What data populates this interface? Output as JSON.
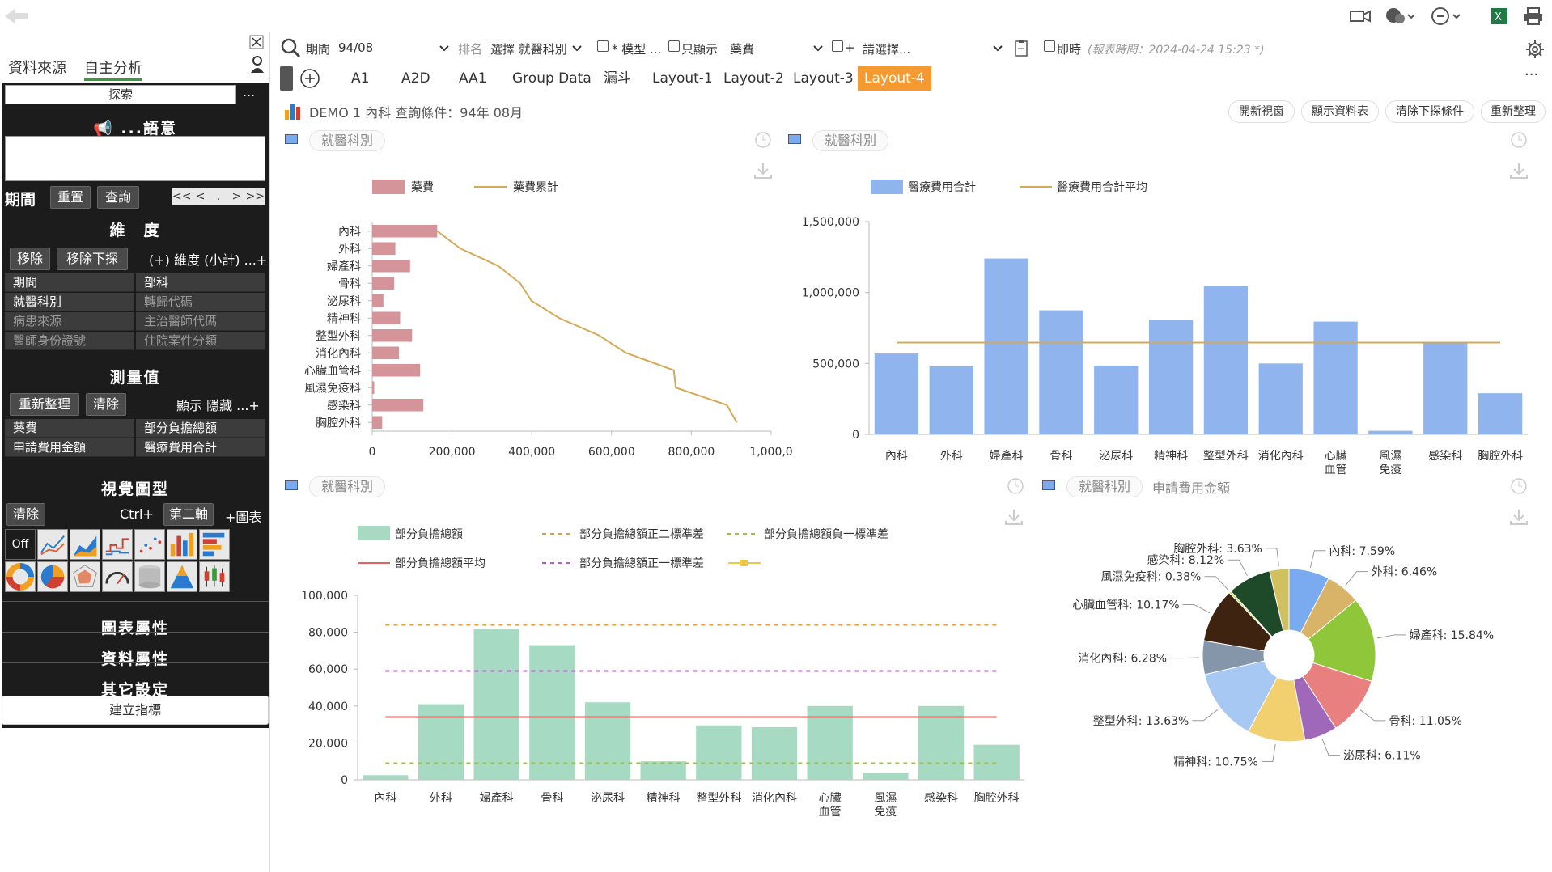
{
  "topbar": {
    "back_icon": "back-arrow-icon",
    "right_icons": [
      "video-icon",
      "chat-icon",
      "clock-icon",
      "excel-icon",
      "printer-icon"
    ]
  },
  "sidebar": {
    "tabs": [
      "資料來源",
      "自主分析"
    ],
    "search_label": "探索",
    "more": "...",
    "semantic_title": "...語意",
    "period": {
      "label": "期間",
      "reset": "重置",
      "query": "查詢",
      "nav": [
        "<<",
        "<",
        ".",
        ">",
        ">>"
      ]
    },
    "dimensions": {
      "title": "維　度",
      "remove": "移除",
      "remove_drill": "移除下探",
      "add": "(+) 維度 (小計) ...+",
      "cells": [
        [
          "期間",
          "部科"
        ],
        [
          "就醫科別",
          "轉歸代碼"
        ],
        [
          "病患來源",
          "主治醫師代碼"
        ],
        [
          "醫師身份證號",
          "住院案件分類"
        ]
      ]
    },
    "measures": {
      "title": "測量值",
      "refresh": "重新整理",
      "clear": "清除",
      "show_hide": "顯示 隱藏 ...+",
      "cells": [
        [
          "藥費",
          "部分負擔總額"
        ],
        [
          "申請費用金額",
          "醫療費用合計"
        ]
      ]
    },
    "visual": {
      "title": "視覺圖型",
      "clear": "清除",
      "ctrl": "Ctrl+",
      "second_axis": "第二軸",
      "add_chart": "+圖表",
      "off": "Off"
    },
    "chart_props": "圖表屬性",
    "data_props": "資料屬性",
    "other_settings": "其它設定",
    "create_index": "建立指標"
  },
  "toolbar": {
    "period_label": "期間",
    "period_value": "94/08",
    "sort_label": "排名",
    "sort_value": "選擇 就醫科別",
    "model_label": "* 模型 ...",
    "only_show_label": "只顯示",
    "only_show_value": "藥費",
    "plus_label": "+",
    "select_placeholder": "請選擇...",
    "instant_label": "即時",
    "report_time": "(報表時間：2024-04-24 15:23 *)"
  },
  "tabs": [
    "A1",
    "A2D",
    "AA1",
    "Group Data",
    "漏斗",
    "Layout-1",
    "Layout-2",
    "Layout-3",
    "Layout-4"
  ],
  "active_tab": "Layout-4",
  "header": {
    "title": "DEMO 1 內科 查詢條件：94年 08月",
    "buttons": [
      "開新視窗",
      "顯示資料表",
      "清除下探條件",
      "重新整理"
    ]
  },
  "departments": [
    "內科",
    "外科",
    "婦產科",
    "骨科",
    "泌尿科",
    "精神科",
    "整型外科",
    "消化內科",
    "心臟血管科",
    "風濕免疫科",
    "感染科",
    "胸腔外科"
  ],
  "panels": {
    "p1_title": "就醫科別",
    "p2_title": "就醫科別",
    "p3_title": "就醫科別",
    "p4_title": "就醫科別",
    "p4_subtitle": "申請費用金額"
  },
  "chart_data": [
    {
      "type": "bar",
      "orientation": "horizontal",
      "legend": [
        "藥費",
        "藥費累計"
      ],
      "categories": [
        "內科",
        "外科",
        "婦產科",
        "骨科",
        "泌尿科",
        "精神科",
        "整型外科",
        "消化內科",
        "心臟血管科",
        "風濕免疫科",
        "感染科",
        "胸腔外科"
      ],
      "series": [
        {
          "name": "藥費",
          "values": [
            163000,
            58000,
            95000,
            55000,
            28000,
            70000,
            100000,
            67000,
            120000,
            5000,
            128000,
            25000
          ]
        },
        {
          "name": "藥費累計",
          "type": "line",
          "values": [
            163000,
            221000,
            316000,
            371000,
            399000,
            469000,
            569000,
            636000,
            756000,
            761000,
            889000,
            914000
          ]
        }
      ],
      "xticks": [
        "0",
        "200,000",
        "400,000",
        "600,000",
        "800,000",
        "1,000,0"
      ],
      "xlim": [
        0,
        1000000
      ],
      "colors": [
        "#d49499",
        "#d4aa55"
      ]
    },
    {
      "type": "bar",
      "legend": [
        "醫療費用合計",
        "醫療費用合計平均"
      ],
      "categories": [
        "內科",
        "外科",
        "婦產科",
        "骨科",
        "泌尿科",
        "精神科",
        "整型外科",
        "消化內科",
        "心臟血管科",
        "風濕免疫科",
        "感染科",
        "胸腔外科"
      ],
      "xtick_labels": [
        "內科",
        "外科",
        "婦產科",
        "骨科",
        "泌尿科",
        "精神科",
        "整型外科",
        "消化內科",
        "心臟\n血管",
        "風濕\n免疫",
        "感染科",
        "胸腔外科"
      ],
      "series": [
        {
          "name": "醫療費用合計",
          "values": [
            570000,
            480000,
            1240000,
            875000,
            485000,
            810000,
            1045000,
            500000,
            795000,
            25000,
            650000,
            290000
          ]
        }
      ],
      "average": 647000,
      "yticks": [
        "0",
        "500,000",
        "1,000,000",
        "1,500,000"
      ],
      "ylim": [
        0,
        1500000
      ],
      "colors": [
        "#8fb4ee",
        "#d4aa55"
      ]
    },
    {
      "type": "bar",
      "legend": [
        "部分負擔總額",
        "部分負擔總額正二標準差",
        "部分負擔總額負一標準差",
        "部分負擔總額平均",
        "部分負擔總額正一標準差"
      ],
      "categories": [
        "內科",
        "外科",
        "婦產科",
        "骨科",
        "泌尿科",
        "精神科",
        "整型外科",
        "消化內科",
        "心臟血管科",
        "風濕免疫科",
        "感染科",
        "胸腔外科"
      ],
      "xtick_labels": [
        "內科",
        "外科",
        "婦產科",
        "骨科",
        "泌尿科",
        "精神科",
        "整型外科",
        "消化內科",
        "心臟\n血管",
        "風濕\n免疫",
        "感染科",
        "胸腔外科"
      ],
      "series": [
        {
          "name": "部分負擔總額",
          "values": [
            2500,
            41000,
            82000,
            73000,
            42000,
            10000,
            29500,
            28500,
            40000,
            3500,
            40000,
            19000
          ]
        }
      ],
      "average": 34000,
      "plus2sd": 84000,
      "plus1sd": 59000,
      "minus1sd": 9000,
      "yticks": [
        "0",
        "20,000",
        "40,000",
        "60,000",
        "80,000",
        "100,000"
      ],
      "ylim": [
        0,
        100000
      ],
      "colors": [
        "#a6dac3",
        "#dda040",
        "#a0c040",
        "#e86060",
        "#b060c8"
      ]
    },
    {
      "type": "pie",
      "donut": true,
      "slices": [
        {
          "label": "內科",
          "value": 7.59,
          "text": "內科: 7.59%",
          "color": "#7aaaf0"
        },
        {
          "label": "外科",
          "value": 6.46,
          "text": "外科: 6.46%",
          "color": "#d8b468"
        },
        {
          "label": "婦產科",
          "value": 15.84,
          "text": "婦產科: 15.84%",
          "color": "#90c63a"
        },
        {
          "label": "骨科",
          "value": 11.05,
          "text": "骨科: 11.05%",
          "color": "#e88080"
        },
        {
          "label": "泌尿科",
          "value": 6.11,
          "text": "泌尿科: 6.11%",
          "color": "#a068b8"
        },
        {
          "label": "精神科",
          "value": 10.75,
          "text": "精神科: 10.75%",
          "color": "#f2d070"
        },
        {
          "label": "整型外科",
          "value": 13.63,
          "text": "整型外科: 13.63%",
          "color": "#a6c8f2"
        },
        {
          "label": "消化內科",
          "value": 6.28,
          "text": "消化內科: 6.28%",
          "color": "#8595aa"
        },
        {
          "label": "心臟血管科",
          "value": 10.17,
          "text": "心臟血管科: 10.17%",
          "color": "#3e2410"
        },
        {
          "label": "風濕免疫科",
          "value": 0.38,
          "text": "風濕免疫科: 0.38%",
          "color": "#c8e048"
        },
        {
          "label": "感染科",
          "value": 8.12,
          "text": "感染科: 8.12%",
          "color": "#1e4a2a"
        },
        {
          "label": "胸腔外科",
          "value": 3.63,
          "text": "胸腔外科: 3.63%",
          "color": "#d0c060"
        }
      ]
    }
  ]
}
